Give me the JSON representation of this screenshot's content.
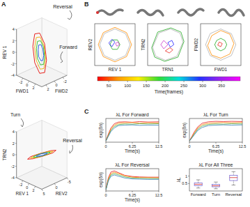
{
  "panel_labels": [
    "A",
    "B",
    "C"
  ],
  "chart_data": [
    {
      "type": "line3d",
      "xlabel": "FWD1",
      "ylabel": "FWD2",
      "zlabel": "REV 1",
      "xlim": [
        -4,
        4
      ],
      "ylim": [
        -3,
        3
      ],
      "zlim": [
        -4,
        4
      ],
      "xticks": [
        -2,
        0,
        2
      ],
      "yticks": [
        -2,
        0,
        2
      ],
      "zticks": [
        -4,
        -2,
        0,
        2,
        4
      ],
      "annotations": [
        "Reversal",
        "Forward"
      ],
      "series": [
        {
          "color": "#e8231d",
          "x": [
            3.5,
            2.5,
            0,
            -2.5,
            -3.5,
            -2.5,
            0,
            2.5,
            3.5
          ],
          "y": [
            1.5,
            1.2,
            0.5,
            -0.2,
            -0.5,
            -0.2,
            0.5,
            1.2,
            1.5
          ],
          "z": [
            0,
            2.5,
            3.5,
            2.5,
            0,
            -2.5,
            -3.5,
            -2.5,
            0
          ]
        },
        {
          "color": "#f0b41c",
          "x": [
            2.8,
            2,
            0,
            -2,
            -2.8,
            -2,
            0,
            2,
            2.8
          ],
          "y": [
            1.2,
            1,
            0.4,
            -0.2,
            -0.4,
            -0.2,
            0.4,
            1,
            1.2
          ],
          "z": [
            0,
            2,
            2.8,
            2,
            0,
            -2,
            -2.8,
            -2,
            0
          ]
        },
        {
          "color": "#3cc43c",
          "x": [
            2.1,
            1.5,
            0,
            -1.5,
            -2.1,
            -1.5,
            0,
            1.5,
            2.1
          ],
          "y": [
            0.9,
            0.7,
            0.3,
            -0.1,
            -0.3,
            -0.1,
            0.3,
            0.7,
            0.9
          ],
          "z": [
            0,
            1.5,
            2.1,
            1.5,
            0,
            -1.5,
            -2.1,
            -1.5,
            0
          ]
        },
        {
          "color": "#2b5de0",
          "x": [
            1.4,
            1,
            0,
            -1,
            -1.4,
            -1,
            0,
            1,
            1.4
          ],
          "y": [
            0.6,
            0.5,
            0.2,
            0,
            -0.2,
            0,
            0.2,
            0.5,
            0.6
          ],
          "z": [
            0,
            1,
            1.4,
            1,
            0,
            -1,
            -1.4,
            -1,
            0
          ]
        }
      ]
    },
    {
      "type": "line3d",
      "xlabel": "REV 1",
      "ylabel": "REV2",
      "zlabel": "TRN2",
      "xlim": [
        -4,
        4
      ],
      "ylim": [
        -5,
        5
      ],
      "zlim": [
        -4,
        4
      ],
      "xticks": [
        -2,
        0,
        2
      ],
      "yticks": [
        -5,
        0,
        5
      ],
      "zticks": [
        -4,
        -2,
        0,
        2,
        4
      ],
      "annotations": [
        "Turn",
        "Reversal"
      ],
      "series": [
        {
          "color": "#e8231d",
          "x": [
            3.5,
            2.5,
            0,
            -2.5,
            -3.5,
            -2.5,
            0,
            2.5,
            3.5
          ],
          "y": [
            0,
            2.5,
            3.5,
            2.5,
            0,
            -2.5,
            -3.5,
            -2.5,
            0
          ],
          "z": [
            1.2,
            0.9,
            0,
            -0.9,
            -1.2,
            -0.9,
            0,
            0.9,
            1.2
          ]
        },
        {
          "color": "#f0b41c",
          "x": [
            2.8,
            2,
            0,
            -2,
            -2.8,
            -2,
            0,
            2,
            2.8
          ],
          "y": [
            0,
            2,
            2.8,
            2,
            0,
            -2,
            -2.8,
            -2,
            0
          ],
          "z": [
            1,
            0.7,
            0,
            -0.7,
            -1,
            -0.7,
            0,
            0.7,
            1
          ]
        },
        {
          "color": "#3cc43c",
          "x": [
            2.1,
            1.5,
            0,
            -1.5,
            -2.1,
            -1.5,
            0,
            1.5,
            2.1
          ],
          "y": [
            0,
            1.5,
            2.1,
            1.5,
            0,
            -1.5,
            -2.1,
            -1.5,
            0
          ],
          "z": [
            0.7,
            0.5,
            0,
            -0.5,
            -0.7,
            -0.5,
            0,
            0.5,
            0.7
          ]
        },
        {
          "color": "#2b5de0",
          "x": [
            1.4,
            1,
            0,
            -1,
            -1.4,
            -1,
            0,
            1,
            1.4
          ],
          "y": [
            0,
            1,
            1.4,
            1,
            0,
            -1,
            -1.4,
            -1,
            0
          ],
          "z": [
            0.5,
            0.3,
            0,
            -0.3,
            -0.5,
            -0.3,
            0,
            0.3,
            0.5
          ]
        }
      ]
    },
    {
      "type": "line",
      "xlabel": "REV 1",
      "ylabel": "REV2",
      "xlim": [
        -4,
        4
      ],
      "ylim": [
        -4,
        4
      ],
      "tick_labels": false,
      "series": [
        {
          "color": "#b0b0b0",
          "x": [
            3,
            2.1,
            0,
            -2.1,
            -3,
            -2.1,
            0,
            2.1,
            3
          ],
          "values": [
            0,
            2.1,
            3,
            2.1,
            0,
            -2.1,
            -3,
            -2.1,
            0
          ]
        },
        {
          "color": "#ff8c00",
          "x": [
            3.3,
            2.3,
            0,
            -2.3,
            -3.3,
            -2.3,
            0,
            2.3,
            3.3
          ],
          "values": [
            0,
            2.3,
            3.3,
            2.3,
            0,
            -2.3,
            -3.3,
            -2.3,
            0
          ]
        },
        {
          "color": "#22aa22",
          "x": [
            1,
            0.5,
            -0.5,
            -1,
            -0.5,
            0.5,
            1
          ],
          "values": [
            0,
            0.9,
            0.9,
            0,
            -0.9,
            -0.9,
            0
          ]
        },
        {
          "color": "#2020ff",
          "x": [
            0,
            -0.6,
            -1.2,
            -0.6,
            0
          ],
          "values": [
            0.5,
            1,
            0.3,
            -0.4,
            0.5
          ]
        },
        {
          "color": "#cc33cc",
          "x": [
            0.4,
            0.9,
            0.6,
            0.1,
            0.4
          ],
          "values": [
            -0.3,
            0,
            0.5,
            0.2,
            -0.3
          ]
        }
      ]
    },
    {
      "type": "line",
      "xlabel": "TRN1",
      "ylabel": "TRN2",
      "xlim": [
        -4,
        4
      ],
      "ylim": [
        -4,
        4
      ],
      "tick_labels": false,
      "series": [
        {
          "color": "#b0b0b0",
          "x": [
            3,
            2.4,
            0.5,
            -1.8,
            -3,
            -2.4,
            -0.5,
            1.8,
            3
          ],
          "values": [
            0.5,
            2.2,
            3,
            2.2,
            -0.5,
            -2.2,
            -3,
            -2.2,
            0.5
          ]
        },
        {
          "color": "#22aa22",
          "x": [
            3.2,
            2.6,
            0.6,
            -2,
            -3.2,
            -2.6,
            -0.6,
            2,
            3.2
          ],
          "values": [
            0.6,
            2.4,
            3.2,
            2.4,
            -0.6,
            -2.4,
            -3.2,
            -2.4,
            0.6
          ]
        },
        {
          "color": "#cc33cc",
          "x": [
            0,
            -0.8,
            -1.4,
            -0.8,
            0
          ],
          "values": [
            0,
            0.8,
            0,
            -0.8,
            0
          ]
        },
        {
          "color": "#2020ff",
          "x": [
            0.5,
            1.2,
            0.8,
            0,
            0.5
          ],
          "values": [
            -0.5,
            0,
            0.8,
            0.4,
            -0.5
          ]
        },
        {
          "color": "#e8231d",
          "x": [
            -0.5,
            0.3,
            1,
            0.4,
            -0.5
          ],
          "values": [
            -1.2,
            -1.6,
            -1,
            -0.6,
            -1.2
          ]
        }
      ]
    },
    {
      "type": "line",
      "xlabel": "FWD1",
      "ylabel": "FWD2",
      "xlim": [
        -4,
        4
      ],
      "ylim": [
        -4,
        4
      ],
      "tick_labels": false,
      "series": [
        {
          "color": "#b0b0b0",
          "x": [
            3,
            2.1,
            0,
            -2.1,
            -3,
            -2.1,
            0,
            2.1,
            3
          ],
          "values": [
            0,
            2.1,
            3,
            2.1,
            0,
            -2.1,
            -3,
            -2.1,
            0
          ]
        },
        {
          "color": "#ff8c00",
          "x": [
            2.6,
            1.8,
            0,
            -1.8,
            -2.6,
            -1.8,
            0,
            1.8,
            2.6
          ],
          "values": [
            0.2,
            2,
            2.7,
            1.7,
            -0.2,
            -2,
            -2.6,
            -1.8,
            0.2
          ]
        },
        {
          "color": "#22aa22",
          "x": [
            1.2,
            0.8,
            0,
            -0.8,
            -1.2,
            -0.8,
            0,
            0.8,
            1.2
          ],
          "values": [
            0,
            0.8,
            1.2,
            0.8,
            0,
            -0.8,
            -1.2,
            -0.8,
            0
          ]
        },
        {
          "color": "#e8231d",
          "x": [
            0.3,
            -0.3,
            -0.6,
            0,
            0.3
          ],
          "values": [
            0.2,
            0.5,
            -0.1,
            -0.4,
            0.2
          ]
        }
      ]
    },
    {
      "type": "colorbar",
      "xlabel": "Time(frames)",
      "xlim": [
        20,
        400
      ],
      "xticks": [
        50,
        100,
        150,
        200,
        250,
        300,
        350
      ],
      "colors": [
        "#ff0000",
        "#ff9900",
        "#ffee00",
        "#33dd33",
        "#00dddd",
        "#2233ff",
        "#9922ee",
        "#ff00ff"
      ]
    },
    {
      "type": "line",
      "title": "λL For Forward",
      "xlabel": "Time(s)",
      "ylabel": "exp(δn)",
      "x": [
        0,
        0.6,
        1.2,
        2,
        3,
        4.5,
        6.25,
        8,
        10,
        12.5
      ],
      "xlim": [
        0,
        12.5
      ],
      "ylim": [
        0,
        1
      ],
      "xticks": [
        0,
        6.25,
        12.5
      ],
      "tick_labels": "x",
      "series": [
        {
          "color": "#e41a1c",
          "values": [
            0.05,
            0.35,
            0.6,
            0.78,
            0.85,
            0.86,
            0.84,
            0.87,
            0.85,
            0.86
          ]
        },
        {
          "color": "#ff7f00",
          "values": [
            0.05,
            0.3,
            0.55,
            0.72,
            0.8,
            0.82,
            0.83,
            0.8,
            0.82,
            0.81
          ]
        },
        {
          "color": "#4daf4a",
          "values": [
            0.05,
            0.28,
            0.5,
            0.66,
            0.74,
            0.77,
            0.76,
            0.78,
            0.77,
            0.78
          ]
        },
        {
          "color": "#377eb8",
          "values": [
            0.05,
            0.25,
            0.45,
            0.6,
            0.7,
            0.72,
            0.73,
            0.71,
            0.72,
            0.72
          ]
        }
      ]
    },
    {
      "type": "line",
      "title": "λL For Turn",
      "xlabel": "Time(s)",
      "ylabel": "exp(δn)",
      "x": [
        0,
        0.6,
        1.2,
        2,
        3,
        4.5,
        6.25,
        8,
        10,
        12.5
      ],
      "xlim": [
        0,
        12.5
      ],
      "ylim": [
        0,
        1
      ],
      "xticks": [
        0,
        6.25,
        12.5
      ],
      "tick_labels": "x",
      "series": [
        {
          "color": "#e41a1c",
          "values": [
            0.05,
            0.25,
            0.45,
            0.65,
            0.8,
            0.86,
            0.88,
            0.87,
            0.88,
            0.87
          ]
        },
        {
          "color": "#ff7f00",
          "values": [
            0.05,
            0.22,
            0.4,
            0.6,
            0.74,
            0.8,
            0.82,
            0.83,
            0.82,
            0.83
          ]
        },
        {
          "color": "#4daf4a",
          "values": [
            0.05,
            0.2,
            0.36,
            0.55,
            0.68,
            0.75,
            0.77,
            0.76,
            0.78,
            0.77
          ]
        },
        {
          "color": "#377eb8",
          "values": [
            0.05,
            0.18,
            0.32,
            0.5,
            0.62,
            0.7,
            0.72,
            0.73,
            0.72,
            0.73
          ]
        }
      ]
    },
    {
      "type": "line",
      "title": "λL For Reversal",
      "xlabel": "Time(s)",
      "ylabel": "exp(δn)",
      "x": [
        0,
        0.6,
        1.2,
        2,
        3,
        4.5,
        6.25,
        8,
        10,
        12.5
      ],
      "xlim": [
        0,
        12.5
      ],
      "ylim": [
        0,
        1
      ],
      "xticks": [
        0,
        6.25,
        12.5
      ],
      "tick_labels": "x",
      "series": [
        {
          "color": "#e41a1c",
          "values": [
            0.05,
            0.6,
            0.85,
            0.9,
            0.82,
            0.7,
            0.65,
            0.63,
            0.62,
            0.62
          ]
        },
        {
          "color": "#ff7f00",
          "values": [
            0.05,
            0.55,
            0.78,
            0.84,
            0.78,
            0.68,
            0.62,
            0.6,
            0.6,
            0.59
          ]
        },
        {
          "color": "#4daf4a",
          "values": [
            0.05,
            0.5,
            0.72,
            0.78,
            0.72,
            0.63,
            0.58,
            0.57,
            0.56,
            0.56
          ]
        },
        {
          "color": "#377eb8",
          "values": [
            0.05,
            0.45,
            0.66,
            0.72,
            0.66,
            0.58,
            0.54,
            0.53,
            0.52,
            0.52
          ]
        }
      ]
    },
    {
      "type": "box",
      "title": "λL For All Three",
      "ylabel": "λL",
      "categories": [
        "Forward",
        "Turn",
        "Reversal"
      ],
      "color": "#6a5acd",
      "ylim": [
        0,
        1.5
      ],
      "yticks": [
        0.5,
        1
      ],
      "boxes": [
        {
          "min": 0.2,
          "q1": 0.35,
          "median": 0.45,
          "q3": 0.55,
          "max": 0.75
        },
        {
          "min": 0.15,
          "q1": 0.28,
          "median": 0.35,
          "q3": 0.45,
          "max": 0.6
        },
        {
          "min": 0.4,
          "q1": 0.7,
          "median": 0.9,
          "q3": 1.05,
          "max": 1.3
        }
      ]
    }
  ]
}
